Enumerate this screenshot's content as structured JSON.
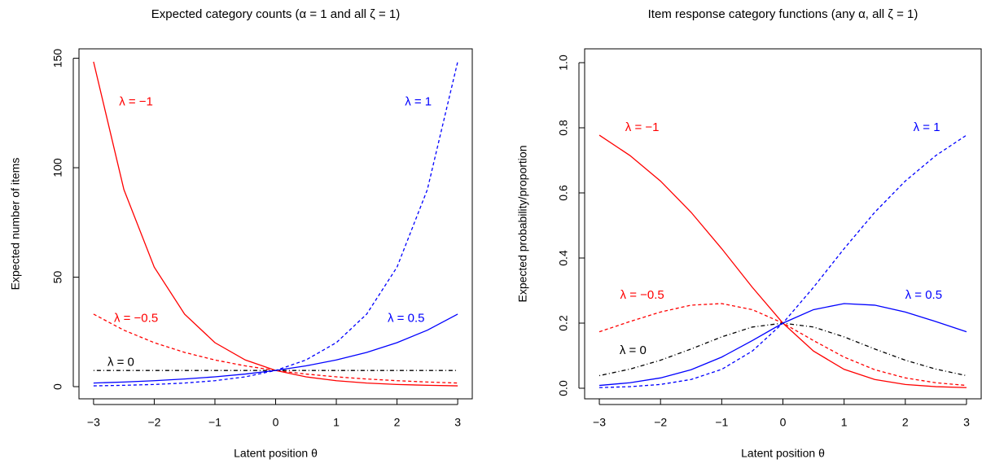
{
  "chart_data": [
    {
      "type": "line",
      "title": "Expected category counts (α = 1 and all ζ = 1)",
      "xlabel": "Latent position θ",
      "ylabel": "Expected number of items",
      "x": [
        -3,
        -2.5,
        -2,
        -1.5,
        -1,
        -0.5,
        0,
        0.5,
        1,
        1.5,
        2,
        2.5,
        3
      ],
      "xlim": [
        -3.24,
        3.24
      ],
      "ylim": [
        -5.56,
        154.3
      ],
      "xticks": [
        {
          "value": -3,
          "label": "−3"
        },
        {
          "value": -2,
          "label": "−2"
        },
        {
          "value": -1,
          "label": "−1"
        },
        0,
        1,
        2,
        3
      ],
      "yticks": [
        0,
        50,
        100,
        150
      ],
      "series": [
        {
          "name": "λ = −1",
          "color": "#ff0000",
          "dash": "solid",
          "values": [
            148.41,
            90.02,
            54.6,
            33.12,
            20.09,
            12.18,
            7.39,
            4.48,
            2.72,
            1.65,
            1.0,
            0.61,
            0.37
          ]
        },
        {
          "name": "λ = −0.5",
          "color": "#ff0000",
          "dash": "dashed",
          "values": [
            33.12,
            25.79,
            20.09,
            15.64,
            12.18,
            9.49,
            7.39,
            5.75,
            4.48,
            3.49,
            2.72,
            2.12,
            1.65
          ]
        },
        {
          "name": "λ = 0",
          "color": "#000000",
          "dash": "dotdash",
          "values": [
            7.39,
            7.39,
            7.39,
            7.39,
            7.39,
            7.39,
            7.39,
            7.39,
            7.39,
            7.39,
            7.39,
            7.39,
            7.39
          ]
        },
        {
          "name": "λ = 0.5",
          "color": "#0000ff",
          "dash": "solid",
          "values": [
            1.65,
            2.12,
            2.72,
            3.49,
            4.48,
            5.75,
            7.39,
            9.49,
            12.18,
            15.64,
            20.09,
            25.79,
            33.12
          ]
        },
        {
          "name": "λ = 1",
          "color": "#0000ff",
          "dash": "dashed",
          "values": [
            0.37,
            0.61,
            1.0,
            1.65,
            2.72,
            4.48,
            7.39,
            12.18,
            20.09,
            33.12,
            54.6,
            90.02,
            148.41
          ]
        }
      ]
    },
    {
      "type": "line",
      "title": "Item response category functions (any α, all ζ = 1)",
      "xlabel": "Latent position θ",
      "ylabel": "Expected probability/proportion",
      "x": [
        -3,
        -2.5,
        -2,
        -1.5,
        -1,
        -0.5,
        0,
        0.5,
        1,
        1.5,
        2,
        2.5,
        3
      ],
      "xlim": [
        -3.24,
        3.24
      ],
      "ylim": [
        -0.0325,
        1.0425
      ],
      "xticks": [
        {
          "value": -3,
          "label": "−3"
        },
        {
          "value": -2,
          "label": "−2"
        },
        {
          "value": -1,
          "label": "−1"
        },
        0,
        1,
        2,
        3
      ],
      "yticks": [
        {
          "value": 0,
          "label": "0.0"
        },
        0.2,
        0.4,
        0.6,
        0.8,
        {
          "value": 1,
          "label": "1.0"
        }
      ],
      "series": [
        {
          "name": "λ = −1",
          "color": "#ff0000",
          "dash": "solid",
          "values": [
            0.7773,
            0.7149,
            0.6364,
            0.5403,
            0.4287,
            0.31,
            0.2,
            0.1141,
            0.058,
            0.0269,
            0.01166,
            0.00482,
            0.00193
          ]
        },
        {
          "name": "λ = −0.5",
          "color": "#ff0000",
          "dash": "dashed",
          "values": [
            0.1734,
            0.2048,
            0.2341,
            0.2552,
            0.26,
            0.2414,
            0.2,
            0.14645,
            0.09565,
            0.05695,
            0.03169,
            0.01681,
            0.00864
          ]
        },
        {
          "name": "λ = 0",
          "color": "#000000",
          "dash": "dotdash",
          "values": [
            0.0387,
            0.0587,
            0.0861,
            0.1206,
            0.1577,
            0.188,
            0.2,
            0.188,
            0.1577,
            0.1206,
            0.0861,
            0.0587,
            0.0387
          ]
        },
        {
          "name": "λ = 0.5",
          "color": "#0000ff",
          "dash": "solid",
          "values": [
            0.00864,
            0.01681,
            0.03169,
            0.05695,
            0.09565,
            0.14645,
            0.2,
            0.2414,
            0.26,
            0.2552,
            0.2341,
            0.2048,
            0.1734
          ]
        },
        {
          "name": "λ = 1",
          "color": "#0000ff",
          "dash": "dashed",
          "values": [
            0.00193,
            0.00482,
            0.01166,
            0.0269,
            0.058,
            0.1141,
            0.2,
            0.31,
            0.4287,
            0.5403,
            0.6364,
            0.7149,
            0.7773
          ]
        }
      ]
    }
  ]
}
